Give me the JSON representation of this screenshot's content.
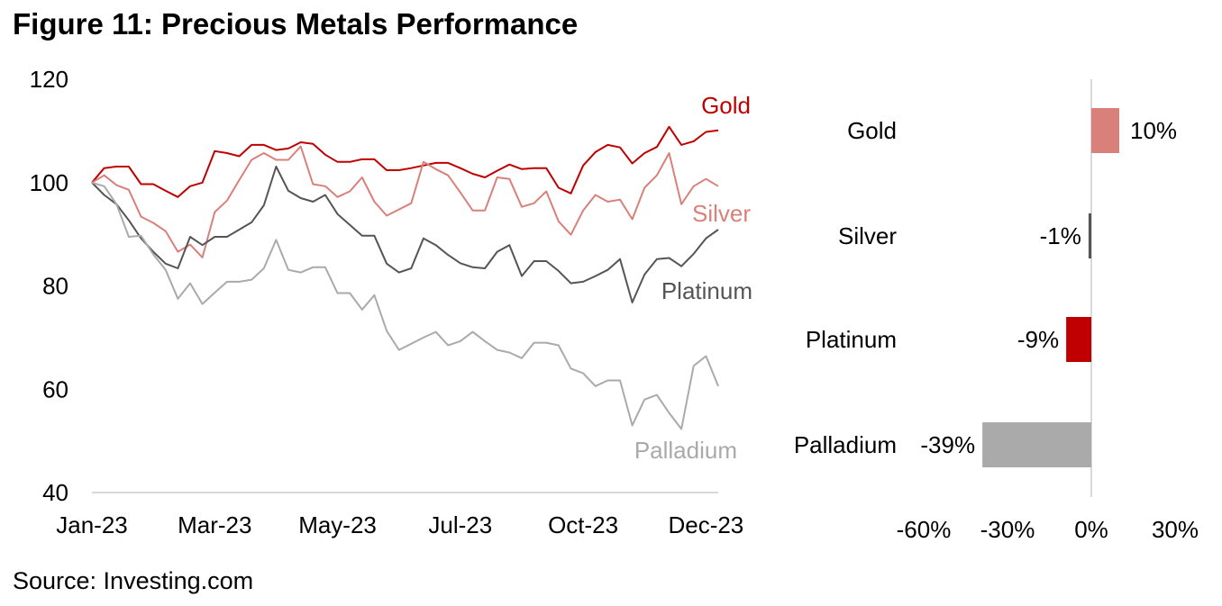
{
  "chart_data": [
    {
      "type": "line",
      "title": "Figure 11: Precious Metals Performance",
      "xlabel": "",
      "ylabel": "",
      "ylim": [
        40,
        120
      ],
      "yticks": [
        "40",
        "60",
        "80",
        "100",
        "120"
      ],
      "ytick_values": [
        40,
        60,
        80,
        100,
        120
      ],
      "xticks": [
        "Jan-23",
        "Mar-23",
        "May-23",
        "Jul-23",
        "Oct-23",
        "Dec-23"
      ],
      "xtick_index": [
        0,
        10,
        20,
        30,
        40,
        50
      ],
      "points": 52,
      "grid": false,
      "series": [
        {
          "name": "Gold",
          "color": "#c00000",
          "values": [
            100,
            102.8,
            103.1,
            103.1,
            99.7,
            99.7,
            98.4,
            97.2,
            99.3,
            100,
            106.1,
            105.7,
            105.1,
            107.3,
            107.3,
            106.3,
            106.6,
            107.8,
            107.5,
            105.4,
            104,
            104,
            104.5,
            104.5,
            102.4,
            102.4,
            102.8,
            103.3,
            103.8,
            103.8,
            102.8,
            101.7,
            101,
            102.3,
            103.5,
            102.6,
            102.8,
            102.8,
            99,
            97.9,
            103.3,
            105.9,
            107.3,
            106.8,
            103.7,
            105.7,
            106.9,
            110.8,
            107.3,
            108,
            109.8,
            110.1
          ]
        },
        {
          "name": "Silver",
          "color": "#d9807a",
          "values": [
            100,
            101.4,
            99.5,
            98.6,
            93.4,
            92.2,
            90.6,
            86.6,
            88,
            85.5,
            94.3,
            96.5,
            100.5,
            104.4,
            105.7,
            104.4,
            104.4,
            107,
            99.7,
            99.3,
            97.2,
            98.3,
            101,
            96.3,
            93.6,
            94.8,
            96,
            104,
            102.6,
            101.4,
            98.1,
            94.6,
            94.6,
            101,
            100.7,
            95.3,
            96,
            98.3,
            92.5,
            89.9,
            94.6,
            97.6,
            96.3,
            96.7,
            92.9,
            99,
            101.4,
            105.7,
            95.8,
            99.3,
            100.7,
            99.3
          ]
        },
        {
          "name": "Platinum",
          "color": "#555555",
          "values": [
            100,
            97.6,
            95.8,
            92.7,
            89.2,
            86.6,
            84.3,
            83.4,
            89.5,
            87.9,
            89.5,
            89.5,
            90.9,
            92.3,
            95.6,
            103.1,
            98.4,
            97,
            96.3,
            97.6,
            93.9,
            91.8,
            89.7,
            89.7,
            84.3,
            82.6,
            83.4,
            89.2,
            87.9,
            86,
            84.4,
            83.6,
            83.4,
            86.6,
            87.9,
            81.9,
            84.8,
            84.8,
            82.9,
            80.5,
            80.8,
            81.9,
            83.1,
            85.2,
            76.8,
            82.2,
            85.2,
            85.4,
            83.8,
            86.2,
            89.2,
            90.9
          ]
        },
        {
          "name": "Palladium",
          "color": "#aaaaaa",
          "values": [
            100,
            99.3,
            95.8,
            89.5,
            89.7,
            86.1,
            83.1,
            77.5,
            80.5,
            76.5,
            78.7,
            80.8,
            80.8,
            81.2,
            83.4,
            88.9,
            83.1,
            82.6,
            83.6,
            83.6,
            78.6,
            78.6,
            75.4,
            78.2,
            71.3,
            67.6,
            68.8,
            70,
            71.1,
            68.5,
            69.3,
            71.1,
            69.3,
            67.6,
            67.1,
            66,
            69,
            69,
            68.5,
            64,
            63.1,
            60.6,
            61.7,
            61.7,
            53,
            58,
            58.9,
            55.4,
            52.3,
            64.5,
            66.4,
            60.6
          ]
        }
      ]
    },
    {
      "type": "bar",
      "orientation": "horizontal",
      "categories": [
        "Gold",
        "Silver",
        "Platinum",
        "Palladium"
      ],
      "values": [
        10,
        -1,
        -9,
        -39
      ],
      "value_labels": [
        "10%",
        "-1%",
        "-9%",
        "-39%"
      ],
      "colors": [
        "#d9807a",
        "#555555",
        "#c00000",
        "#aaaaaa"
      ],
      "xlim": [
        -60,
        30
      ],
      "xticks": [
        "-60%",
        "-30%",
        "0%",
        "30%"
      ],
      "xtick_values": [
        -60,
        -30,
        0,
        30
      ]
    }
  ],
  "title": "Figure 11: Precious Metals Performance",
  "source": "Source: Investing.com"
}
